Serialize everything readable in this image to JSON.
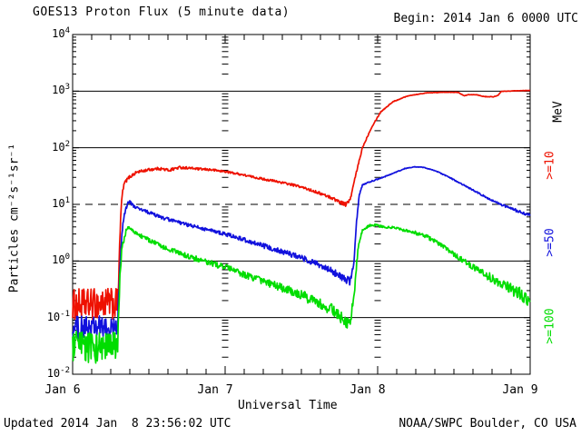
{
  "header": {
    "title": "GOES13 Proton Flux (5 minute data)",
    "begin": "Begin: 2014 Jan 6 0000 UTC"
  },
  "footer": {
    "updated": "Updated 2014 Jan  8 23:56:02 UTC",
    "source": "NOAA/SWPC Boulder, CO USA"
  },
  "right_labels": [
    {
      "label": "MeV",
      "color": "#000000"
    },
    {
      "label": ">=10",
      "color": "#ee1100"
    },
    {
      "label": ">=50",
      "color": "#1111dd"
    },
    {
      "label": ">=100",
      "color": "#00dd00"
    }
  ],
  "chart_data": {
    "type": "line",
    "title": "GOES13 Proton Flux (5 minute data)",
    "begin": "2014 Jan 6 0000 UTC",
    "xlabel": "Universal Time",
    "ylabel": "Particles cm⁻²s⁻¹sr⁻¹",
    "x_ticks": [
      "Jan 6",
      "Jan 7",
      "Jan 8",
      "Jan 9"
    ],
    "x_range_days": [
      0,
      3
    ],
    "x_minor_tick_hours": 3,
    "y_scale": "log",
    "ylim": [
      0.01,
      10000
    ],
    "y_tick_exponents": [
      4,
      3,
      2,
      1,
      0,
      -1,
      -2
    ],
    "gridlines": {
      "solid": [
        1000,
        100,
        1,
        0.1
      ],
      "dashed": [
        10
      ]
    },
    "unit_label": "MeV",
    "series": [
      {
        "name": ">=10 MeV",
        "color": "#ee1100",
        "points_t_value_noise": [
          [
            0.0,
            0.17,
            0.28
          ],
          [
            0.1,
            0.17,
            0.28
          ],
          [
            0.2,
            0.18,
            0.28
          ],
          [
            0.295,
            0.17,
            0.2
          ],
          [
            0.305,
            0.9,
            0.1
          ],
          [
            0.315,
            6,
            0.05
          ],
          [
            0.325,
            15,
            0.035
          ],
          [
            0.34,
            24,
            0.03
          ],
          [
            0.37,
            30,
            0.028
          ],
          [
            0.42,
            37,
            0.025
          ],
          [
            0.5,
            41,
            0.025
          ],
          [
            0.57,
            43,
            0.028
          ],
          [
            0.63,
            40,
            0.028
          ],
          [
            0.7,
            45,
            0.022
          ],
          [
            0.76,
            44,
            0.02
          ],
          [
            0.83,
            42,
            0.02
          ],
          [
            0.9,
            41,
            0.02
          ],
          [
            1.0,
            38,
            0.018
          ],
          [
            1.1,
            34,
            0.018
          ],
          [
            1.22,
            29,
            0.02
          ],
          [
            1.35,
            25,
            0.02
          ],
          [
            1.48,
            21,
            0.022
          ],
          [
            1.6,
            16.5,
            0.025
          ],
          [
            1.7,
            13,
            0.03
          ],
          [
            1.74,
            11.5,
            0.035
          ],
          [
            1.79,
            10,
            0.035
          ],
          [
            1.82,
            12,
            0.02
          ],
          [
            1.85,
            28,
            0.02
          ],
          [
            1.9,
            100,
            0.012
          ],
          [
            1.96,
            230,
            0.01
          ],
          [
            2.02,
            430,
            0.008
          ],
          [
            2.1,
            650,
            0.006
          ],
          [
            2.2,
            830,
            0.005
          ],
          [
            2.32,
            930,
            0.004
          ],
          [
            2.45,
            960,
            0.004
          ],
          [
            2.53,
            950,
            0.004
          ],
          [
            2.565,
            830,
            0.004
          ],
          [
            2.6,
            870,
            0.004
          ],
          [
            2.65,
            860,
            0.004
          ],
          [
            2.7,
            800,
            0.005
          ],
          [
            2.76,
            795,
            0.005
          ],
          [
            2.79,
            840,
            0.004
          ],
          [
            2.81,
            990,
            0.003
          ],
          [
            2.9,
            1010,
            0.003
          ],
          [
            3.0,
            1030,
            0.003
          ]
        ]
      },
      {
        "name": ">=50 MeV",
        "color": "#1111dd",
        "points_t_value_noise": [
          [
            0.0,
            0.065,
            0.22
          ],
          [
            0.1,
            0.065,
            0.22
          ],
          [
            0.2,
            0.065,
            0.22
          ],
          [
            0.295,
            0.06,
            0.18
          ],
          [
            0.305,
            0.35,
            0.08
          ],
          [
            0.32,
            2.5,
            0.05
          ],
          [
            0.34,
            7,
            0.04
          ],
          [
            0.36,
            10.5,
            0.03
          ],
          [
            0.375,
            11,
            0.03
          ],
          [
            0.4,
            9.3,
            0.03
          ],
          [
            0.44,
            8.2,
            0.03
          ],
          [
            0.5,
            7.2,
            0.03
          ],
          [
            0.58,
            5.9,
            0.03
          ],
          [
            0.66,
            5.1,
            0.03
          ],
          [
            0.76,
            4.3,
            0.03
          ],
          [
            0.88,
            3.6,
            0.032
          ],
          [
            1.0,
            3.0,
            0.035
          ],
          [
            1.12,
            2.4,
            0.04
          ],
          [
            1.25,
            1.85,
            0.045
          ],
          [
            1.38,
            1.45,
            0.05
          ],
          [
            1.5,
            1.15,
            0.055
          ],
          [
            1.62,
            0.83,
            0.06
          ],
          [
            1.72,
            0.62,
            0.07
          ],
          [
            1.79,
            0.47,
            0.07
          ],
          [
            1.82,
            0.43,
            0.05
          ],
          [
            1.845,
            1.0,
            0.04
          ],
          [
            1.862,
            5,
            0.025
          ],
          [
            1.88,
            15,
            0.015
          ],
          [
            1.9,
            22,
            0.012
          ],
          [
            1.95,
            25,
            0.01
          ],
          [
            2.0,
            28,
            0.01
          ],
          [
            2.06,
            32,
            0.008
          ],
          [
            2.12,
            37,
            0.008
          ],
          [
            2.18,
            43,
            0.006
          ],
          [
            2.24,
            46,
            0.006
          ],
          [
            2.3,
            45,
            0.006
          ],
          [
            2.38,
            39,
            0.008
          ],
          [
            2.46,
            31,
            0.01
          ],
          [
            2.55,
            23,
            0.012
          ],
          [
            2.64,
            17,
            0.015
          ],
          [
            2.72,
            13,
            0.018
          ],
          [
            2.8,
            10.2,
            0.02
          ],
          [
            2.88,
            8.3,
            0.025
          ],
          [
            2.95,
            7.2,
            0.03
          ],
          [
            3.0,
            6.3,
            0.035
          ]
        ]
      },
      {
        "name": ">=100 MeV",
        "color": "#00dd00",
        "points_t_value_noise": [
          [
            0.0,
            0.03,
            0.28
          ],
          [
            0.1,
            0.03,
            0.28
          ],
          [
            0.2,
            0.03,
            0.28
          ],
          [
            0.295,
            0.03,
            0.2
          ],
          [
            0.31,
            0.5,
            0.1
          ],
          [
            0.325,
            1.8,
            0.05
          ],
          [
            0.35,
            3.5,
            0.03
          ],
          [
            0.37,
            3.9,
            0.03
          ],
          [
            0.4,
            3.3,
            0.03
          ],
          [
            0.44,
            2.85,
            0.035
          ],
          [
            0.5,
            2.35,
            0.04
          ],
          [
            0.58,
            1.85,
            0.04
          ],
          [
            0.66,
            1.5,
            0.045
          ],
          [
            0.76,
            1.2,
            0.05
          ],
          [
            0.88,
            0.95,
            0.05
          ],
          [
            1.0,
            0.78,
            0.055
          ],
          [
            1.12,
            0.58,
            0.06
          ],
          [
            1.25,
            0.44,
            0.07
          ],
          [
            1.38,
            0.33,
            0.08
          ],
          [
            1.5,
            0.25,
            0.09
          ],
          [
            1.62,
            0.18,
            0.1
          ],
          [
            1.72,
            0.13,
            0.11
          ],
          [
            1.79,
            0.085,
            0.1
          ],
          [
            1.82,
            0.075,
            0.08
          ],
          [
            1.85,
            0.35,
            0.06
          ],
          [
            1.87,
            1.6,
            0.035
          ],
          [
            1.9,
            3.4,
            0.025
          ],
          [
            1.94,
            4.2,
            0.02
          ],
          [
            1.99,
            4.3,
            0.02
          ],
          [
            2.04,
            4.0,
            0.02
          ],
          [
            2.1,
            3.9,
            0.02
          ],
          [
            2.16,
            3.6,
            0.025
          ],
          [
            2.24,
            3.2,
            0.03
          ],
          [
            2.32,
            2.7,
            0.035
          ],
          [
            2.42,
            1.9,
            0.04
          ],
          [
            2.52,
            1.2,
            0.05
          ],
          [
            2.62,
            0.8,
            0.06
          ],
          [
            2.72,
            0.55,
            0.08
          ],
          [
            2.82,
            0.38,
            0.1
          ],
          [
            2.92,
            0.27,
            0.12
          ],
          [
            3.0,
            0.2,
            0.13
          ]
        ]
      }
    ]
  }
}
